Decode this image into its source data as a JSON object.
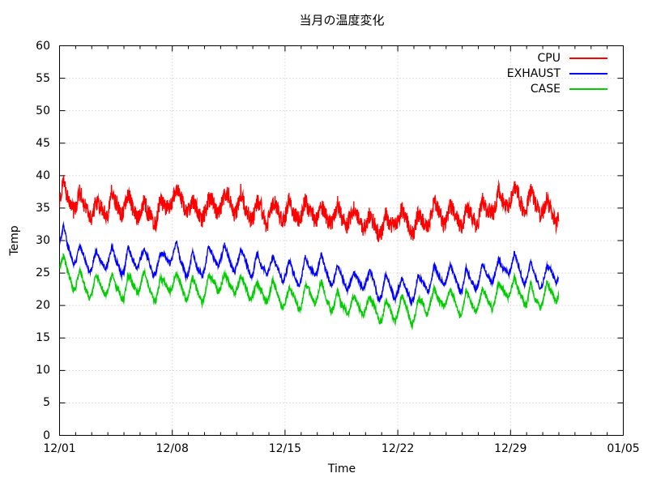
{
  "window": {
    "background": "#ffffff",
    "text_color": "#000000"
  },
  "chart_data": {
    "type": "line",
    "title": "当月の温度変化",
    "xlabel": "Time",
    "ylabel": "Temp",
    "ylim": [
      0,
      60
    ],
    "y_ticks": [
      0,
      5,
      10,
      15,
      20,
      25,
      30,
      35,
      40,
      45,
      50,
      55,
      60
    ],
    "xlim_days": [
      0,
      35
    ],
    "x_major_ticks": [
      {
        "day": 0,
        "label": "12/01"
      },
      {
        "day": 7,
        "label": "12/08"
      },
      {
        "day": 14,
        "label": "12/15"
      },
      {
        "day": 21,
        "label": "12/22"
      },
      {
        "day": 28,
        "label": "12/29"
      },
      {
        "day": 35,
        "label": "01/05"
      }
    ],
    "x_minor_tick_every_days": 1,
    "grid": {
      "show": true,
      "style": "dotted",
      "color": "#bdbdbd",
      "on": "major-ticks"
    },
    "axis_color": "#000000",
    "legend": {
      "position": "top-right-inside"
    },
    "data_span": {
      "first_day_label": "12/01",
      "last_day_label": "01/01",
      "days_of_data": 31
    },
    "series": [
      {
        "name": "CPU",
        "color": "#ff0000",
        "sampling": "approx. daily mean temperature, 12/01 .. 01/01",
        "daily_means": [
          37.2,
          36.0,
          34.8,
          35.3,
          36.3,
          35.0,
          34.3,
          36.8,
          35.3,
          35.0,
          36.3,
          35.8,
          34.5,
          34.3,
          34.5,
          34.5,
          34.3,
          34.0,
          34.0,
          33.0,
          31.8,
          33.3,
          32.5,
          33.8,
          34.3,
          33.5,
          34.3,
          35.3,
          37.0,
          36.3,
          35.0,
          34.3
        ],
        "daily_cycle_amplitude": 1.6,
        "jitter_amplitude": 1.3,
        "smooth_noise_amplitude": 0.7,
        "seed": 101
      },
      {
        "name": "EXHAUST",
        "color": "#0000ff",
        "sampling": "approx. daily mean temperature, 12/01 .. 01/01",
        "daily_means": [
          30.8,
          27.8,
          27.0,
          27.3,
          26.5,
          27.8,
          26.0,
          28.3,
          26.0,
          26.5,
          27.8,
          27.0,
          26.0,
          26.3,
          24.8,
          25.0,
          26.3,
          24.3,
          23.8,
          24.0,
          22.3,
          23.0,
          22.5,
          24.0,
          25.3,
          23.5,
          24.5,
          25.3,
          26.5,
          25.3,
          24.5,
          25.5
        ],
        "daily_cycle_amplitude": 1.8,
        "jitter_amplitude": 0.35,
        "smooth_noise_amplitude": 0.55,
        "seed": 202
      },
      {
        "name": "CASE",
        "color": "#00cc00",
        "sampling": "approx. daily mean temperature, 12/01 .. 01/01",
        "daily_means": [
          26.3,
          23.8,
          23.0,
          23.3,
          22.5,
          23.8,
          22.0,
          24.3,
          22.0,
          22.5,
          24.0,
          23.0,
          22.0,
          22.3,
          20.8,
          21.0,
          22.3,
          20.3,
          20.0,
          20.5,
          18.8,
          19.5,
          19.0,
          20.5,
          21.8,
          20.0,
          21.0,
          21.5,
          23.0,
          21.5,
          21.0,
          22.5
        ],
        "daily_cycle_amplitude": 1.8,
        "jitter_amplitude": 0.4,
        "smooth_noise_amplitude": 0.55,
        "seed": 303
      }
    ]
  }
}
